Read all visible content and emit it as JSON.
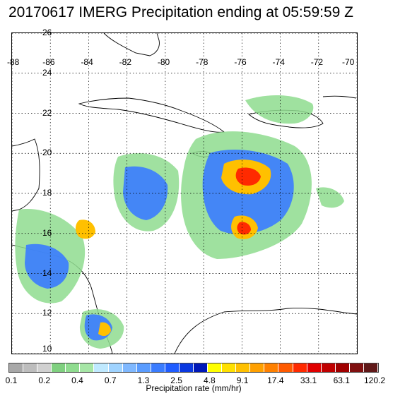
{
  "title": "20170617 IMERG Precipitation ending at 05:59:59 Z",
  "map": {
    "lon_range": [
      -88,
      -70
    ],
    "lat_range": [
      10,
      26
    ],
    "lon_ticks": [
      "-88",
      "-86",
      "-84",
      "-82",
      "-80",
      "-78",
      "-76",
      "-74",
      "-72",
      "-70"
    ],
    "lat_ticks": [
      "26",
      "24",
      "22",
      "20",
      "18",
      "16",
      "14",
      "12",
      "10"
    ],
    "grid": "dotted",
    "coastline_color": "#000000"
  },
  "colorbar": {
    "colors": [
      "#a8a8a8",
      "#bdbdbd",
      "#d0d0d0",
      "#7fd07f",
      "#8fdc8f",
      "#a6e6a6",
      "#bfe9ff",
      "#9fd3ff",
      "#7fb8ff",
      "#5a9cff",
      "#3a7cff",
      "#1f5cff",
      "#0a38e0",
      "#0018b8",
      "#ffff00",
      "#ffe000",
      "#ffc000",
      "#ffa000",
      "#ff8000",
      "#ff5a00",
      "#ff2a00",
      "#e00000",
      "#c00000",
      "#a00000",
      "#801010",
      "#601818"
    ],
    "tick_labels": [
      "0.1",
      "0.2",
      "0.4",
      "0.7",
      "1.3",
      "2.5",
      "4.8",
      "9.1",
      "17.4",
      "33.1",
      "63.1",
      "120.2"
    ],
    "label": "Precipitation rate (mm/hr)"
  }
}
